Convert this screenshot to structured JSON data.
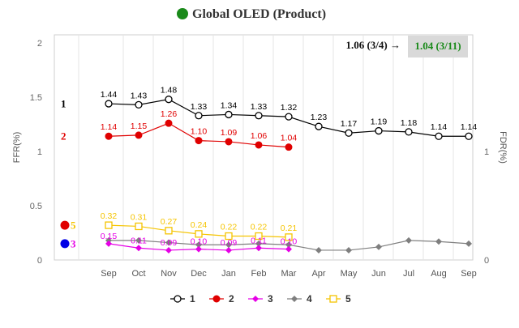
{
  "chart_data": {
    "type": "line",
    "title": "Global OLED (Product)",
    "title_marker_color": "#1a8a1a",
    "ylabel": "FFR(%)",
    "y2label": "FDR(%)",
    "ylim": [
      0,
      2
    ],
    "yticks": [
      0,
      0.5,
      1,
      1.5,
      2
    ],
    "ytick_labels": [
      "0",
      "0.5",
      "1",
      "1.5",
      "2"
    ],
    "y2ticks": [
      0,
      1
    ],
    "y2tick_labels": [
      "0",
      "1"
    ],
    "categories": [
      "Sep",
      "Oct",
      "Nov",
      "Dec",
      "Jan",
      "Feb",
      "Mar",
      "Apr",
      "May",
      "Jun",
      "Jul",
      "Aug",
      "Sep"
    ],
    "grid": "vertical",
    "annotation": {
      "text": "1.06 (3/4) →",
      "boxed_text": "1.04 (3/11)"
    },
    "series": [
      {
        "name": "1",
        "color": "#000000",
        "marker": "circle-open",
        "values": [
          1.44,
          1.43,
          1.48,
          1.33,
          1.34,
          1.33,
          1.32,
          1.23,
          1.17,
          1.19,
          1.18,
          1.14,
          1.14
        ],
        "labels": [
          "1.44",
          "1.43",
          "1.48",
          "1.33",
          "1.34",
          "1.33",
          "1.32",
          "1.23",
          "1.17",
          "1.19",
          "1.18",
          "1.14",
          "1.14"
        ]
      },
      {
        "name": "2",
        "color": "#e00000",
        "marker": "circle-filled",
        "values": [
          1.14,
          1.15,
          1.26,
          1.1,
          1.09,
          1.06,
          1.04,
          null,
          null,
          null,
          null,
          null,
          null
        ],
        "labels": [
          "1.14",
          "1.15",
          "1.26",
          "1.10",
          "1.09",
          "1.06",
          "1.04",
          "",
          "",
          "",
          "",
          "",
          ""
        ]
      },
      {
        "name": "3",
        "color": "#e600e6",
        "marker": "diamond-filled",
        "values": [
          0.15,
          0.11,
          0.09,
          0.1,
          0.09,
          0.11,
          0.1,
          null,
          null,
          null,
          null,
          null,
          null
        ],
        "labels": [
          "0.15",
          "0.11",
          "0.09",
          "0.10",
          "0.09",
          "0.11",
          "0.10",
          "",
          "",
          "",
          "",
          "",
          ""
        ]
      },
      {
        "name": "4",
        "color": "#7f7f7f",
        "marker": "diamond-filled",
        "values": [
          0.18,
          0.18,
          0.16,
          0.14,
          0.14,
          0.15,
          0.14,
          0.09,
          0.09,
          0.12,
          0.18,
          0.17,
          0.15
        ],
        "labels": [
          "",
          "",
          "",
          "",
          "",
          "",
          "",
          "",
          "",
          "",
          "",
          "",
          ""
        ]
      },
      {
        "name": "5",
        "color": "#f5c400",
        "marker": "square-open",
        "values": [
          0.32,
          0.31,
          0.27,
          0.24,
          0.22,
          0.22,
          0.21,
          null,
          null,
          null,
          null,
          null,
          null
        ],
        "labels": [
          "0.32",
          "0.31",
          "0.27",
          "0.24",
          "0.22",
          "0.22",
          "0.21",
          "",
          "",
          "",
          "",
          "",
          ""
        ]
      }
    ],
    "left_callouts": [
      {
        "series": "1",
        "text": "1"
      },
      {
        "series": "2",
        "text": "2"
      },
      {
        "series": "5",
        "text": "5",
        "color": "#e00000",
        "text_color": "#f5c400"
      },
      {
        "series": "3",
        "text": "3",
        "color": "#0000e6",
        "text_color": "#e600e6"
      }
    ],
    "legend": {
      "position": "bottom"
    }
  }
}
